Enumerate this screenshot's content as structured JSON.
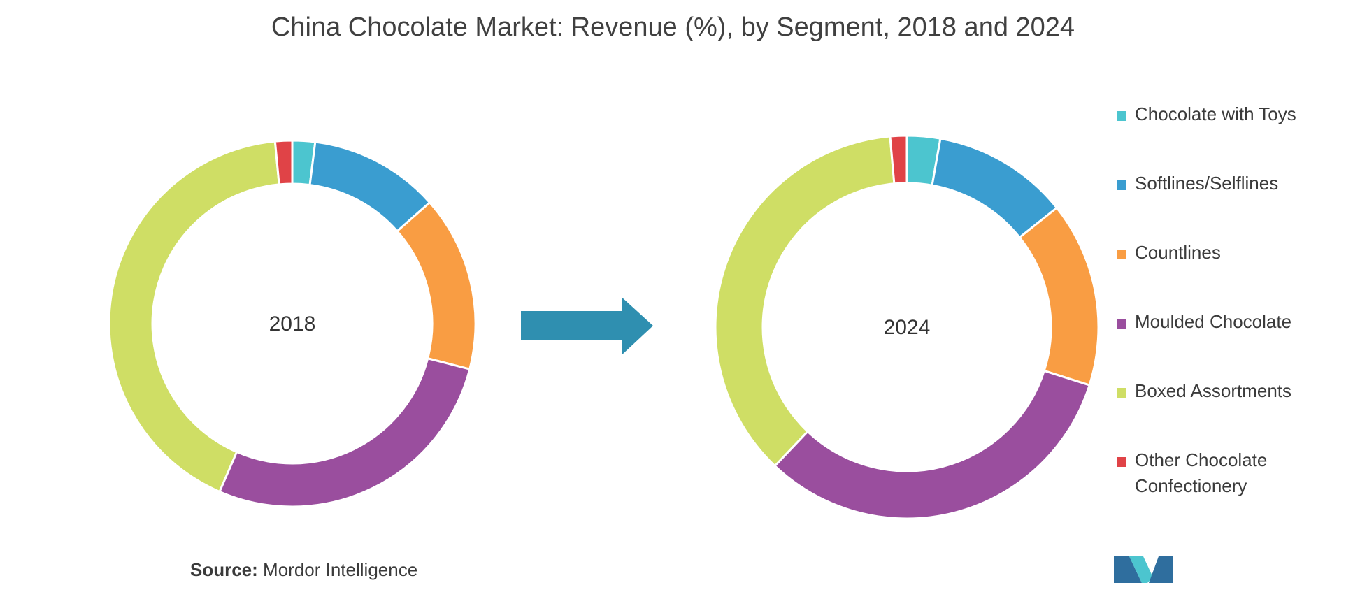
{
  "title": "China Chocolate Market: Revenue (%), by Segment, 2018 and 2024",
  "source": {
    "label": "Source:",
    "text": "Mordor Intelligence"
  },
  "colors": {
    "Chocolate with Toys": "#4cc5cf",
    "Softlines/Selflines": "#3a9dd0",
    "Countlines": "#f99d43",
    "Moulded Chocolate": "#9a4e9e",
    "Boxed Assortments": "#cfde65",
    "Other Chocolate Confectionery": "#e04347",
    "arrow": "#2f8fb0",
    "logo_dark": "#2f6e9e",
    "logo_light": "#4cc5cf"
  },
  "legend": [
    {
      "label": "Chocolate with Toys",
      "color": "#4cc5cf"
    },
    {
      "label": "Softlines/Selflines",
      "color": "#3a9dd0"
    },
    {
      "label": "Countlines",
      "color": "#f99d43"
    },
    {
      "label": "Moulded Chocolate",
      "color": "#9a4e9e"
    },
    {
      "label": "Boxed Assortments",
      "color": "#cfde65"
    },
    {
      "label": "Other Chocolate Confectionery",
      "color": "#e04347"
    }
  ],
  "chart_data": [
    {
      "type": "pie",
      "variant": "donut",
      "center_label": "2018",
      "categories": [
        "Chocolate with Toys",
        "Softlines/Selflines",
        "Countlines",
        "Moulded Chocolate",
        "Boxed Assortments",
        "Other Chocolate Confectionery"
      ],
      "values": [
        2.0,
        11.5,
        15.5,
        27.5,
        42.0,
        1.5
      ],
      "unit": "%"
    },
    {
      "type": "pie",
      "variant": "donut",
      "center_label": "2024",
      "categories": [
        "Chocolate with Toys",
        "Softlines/Selflines",
        "Countlines",
        "Moulded Chocolate",
        "Boxed Assortments",
        "Other Chocolate Confectionery"
      ],
      "values": [
        2.8,
        11.5,
        15.6,
        32.2,
        36.5,
        1.4
      ],
      "unit": "%"
    }
  ]
}
